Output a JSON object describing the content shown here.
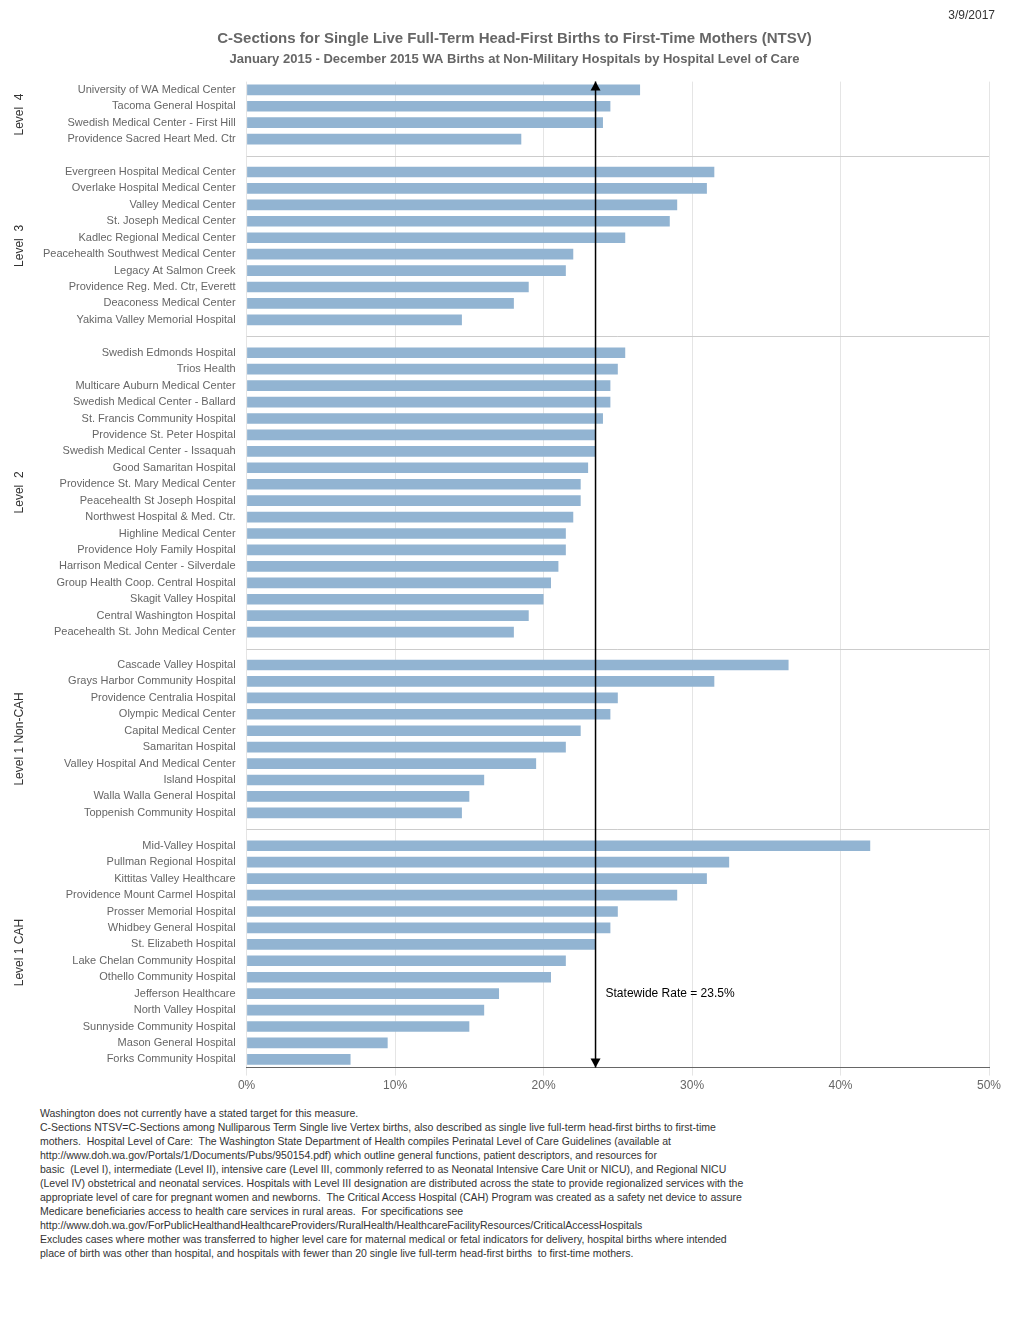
{
  "chart_data": {
    "type": "bar",
    "orientation": "horizontal",
    "title": "C-Sections for Single Live Full-Term Head-First Births to First-Time Mothers (NTSV)",
    "subtitle": "January 2015 - December 2015 WA Births at Non-Military Hospitals by Hospital Level of Care",
    "date": "3/9/2017",
    "color": "#92b4d2",
    "xlim": [
      0,
      50
    ],
    "xticks": [
      {
        "value": 0,
        "label": "0%"
      },
      {
        "value": 10,
        "label": "10%"
      },
      {
        "value": 20,
        "label": "20%"
      },
      {
        "value": 30,
        "label": "30%"
      },
      {
        "value": 40,
        "label": "40%"
      },
      {
        "value": 50,
        "label": "50%"
      }
    ],
    "grid": true,
    "reference_line": {
      "value": 23.5,
      "label": "Statewide Rate = 23.5%"
    },
    "groups": [
      {
        "label": "Level  4",
        "categories": [
          "University of WA Medical Center",
          "Tacoma General Hospital",
          "Swedish Medical Center - First Hill",
          "Providence Sacred Heart Med. Ctr"
        ],
        "values": [
          26.5,
          24.5,
          24.0,
          18.5
        ]
      },
      {
        "label": "Level  3",
        "categories": [
          "Evergreen Hospital Medical Center",
          "Overlake Hospital Medical Center",
          "Valley Medical Center",
          "St. Joseph Medical Center",
          "Kadlec Regional Medical Center",
          "Peacehealth Southwest Medical Center",
          "Legacy At Salmon Creek",
          "Providence Reg. Med. Ctr, Everett",
          "Deaconess Medical Center",
          "Yakima Valley Memorial Hospital"
        ],
        "values": [
          31.5,
          31.0,
          29.0,
          28.5,
          25.5,
          22.0,
          21.5,
          19.0,
          18.0,
          14.5
        ]
      },
      {
        "label": "Level  2",
        "categories": [
          "Swedish Edmonds Hospital",
          "Trios Health",
          "Multicare Auburn Medical Center",
          "Swedish Medical Center - Ballard",
          "St. Francis Community Hospital",
          "Providence St. Peter Hospital",
          "Swedish Medical Center - Issaquah",
          "Good Samaritan Hospital",
          "Providence St. Mary Medical Center",
          "Peacehealth St Joseph Hospital",
          "Northwest Hospital & Med. Ctr.",
          "Highline Medical Center",
          "Providence Holy Family Hospital",
          "Harrison Medical Center - Silverdale",
          "Group Health Coop. Central Hospital",
          "Skagit Valley Hospital",
          "Central Washington Hospital",
          "Peacehealth St. John Medical Center"
        ],
        "values": [
          25.5,
          25.0,
          24.5,
          24.5,
          24.0,
          23.5,
          23.5,
          23.0,
          22.5,
          22.5,
          22.0,
          21.5,
          21.5,
          21.0,
          20.5,
          20.0,
          19.0,
          18.0
        ]
      },
      {
        "label": "Level 1 Non-CAH",
        "categories": [
          "Cascade Valley Hospital",
          "Grays Harbor Community Hospital",
          "Providence Centralia Hospital",
          "Olympic Medical Center",
          "Capital Medical Center",
          "Samaritan Hospital",
          "Valley Hospital And Medical Center",
          "Island Hospital",
          "Walla Walla General Hospital",
          "Toppenish Community Hospital"
        ],
        "values": [
          36.5,
          31.5,
          25.0,
          24.5,
          22.5,
          21.5,
          19.5,
          16.0,
          15.0,
          14.5
        ]
      },
      {
        "label": "Level 1 CAH",
        "categories": [
          "Mid-Valley Hospital",
          "Pullman Regional Hospital",
          "Kittitas Valley Healthcare",
          "Providence Mount Carmel Hospital",
          "Prosser Memorial Hospital",
          "Whidbey General Hospital",
          "St. Elizabeth Hospital",
          "Lake Chelan Community Hospital",
          "Othello Community Hospital",
          "Jefferson Healthcare",
          "North Valley Hospital",
          "Sunnyside Community Hospital",
          "Mason General Hospital",
          "Forks Community Hospital"
        ],
        "values": [
          42.0,
          32.5,
          31.0,
          29.0,
          25.0,
          24.5,
          23.5,
          21.5,
          20.5,
          17.0,
          16.0,
          15.0,
          9.5,
          7.0
        ]
      }
    ],
    "notes": [
      "Washington does not currently have a stated target for this measure.",
      "C-Sections NTSV=C-Sections among Nulliparous Term Single live Vertex births, also described as single live full-term head-first births to first-time",
      "mothers.  Hospital Level of Care:  The Washington State Department of Health compiles Perinatal Level of Care Guidelines (available at",
      "http://www.doh.wa.gov/Portals/1/Documents/Pubs/950154.pdf) which outline general functions, patient descriptors, and resources for",
      "basic  (Level I), intermediate (Level II), intensive care (Level III, commonly referred to as Neonatal Intensive Care Unit or NICU), and Regional NICU",
      "(Level IV) obstetrical and neonatal services. Hospitals with Level III designation are distributed across the state to provide regionalized services with the",
      "appropriate level of care for pregnant women and newborns.  The Critical Access Hospital (CAH) Program was created as a safety net device to assure",
      "Medicare beneficiaries access to health care services in rural areas.  For specifications see",
      "http://www.doh.wa.gov/ForPublicHealthandHealthcareProviders/RuralHealth/HealthcareFacilityResources/CriticalAccessHospitals",
      "Excludes cases where mother was transferred to higher level care for maternal medical or fetal indicators for delivery, hospital births where intended",
      "place of birth was other than hospital, and hospitals with fewer than 20 single live full-term head-first births  to first-time mothers."
    ]
  }
}
